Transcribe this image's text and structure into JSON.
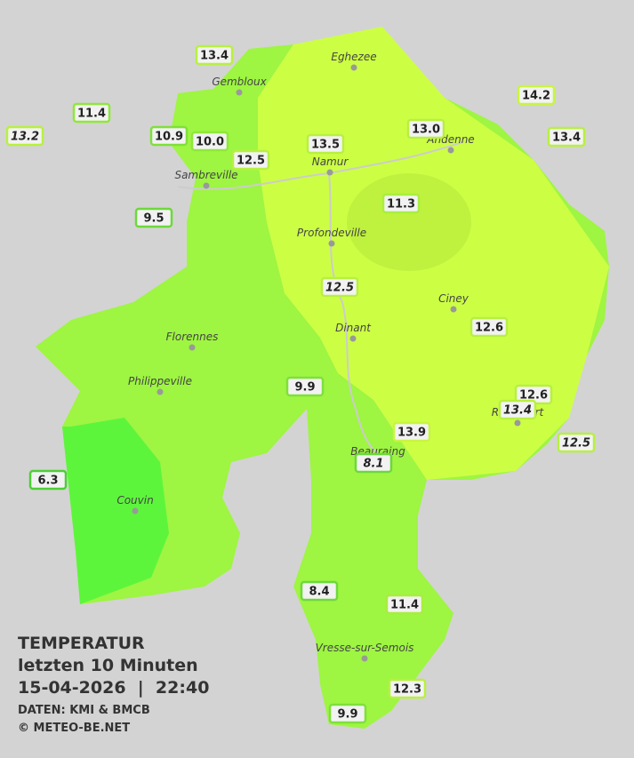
{
  "legend": {
    "title": "TEMPERATUR",
    "subtitle": "letzten 10 Minuten",
    "datetime": "15-04-2026  |  22:40",
    "source": "DATEN: KMI & BMCB",
    "copyright": "© METEO-BE.NET"
  },
  "towns": [
    "Eghezee",
    "Gembloux",
    "Andenne",
    "Namur",
    "Sambreville",
    "Profondeville",
    "Ciney",
    "Dinant",
    "Florennes",
    "Philippeville",
    "Rochefort",
    "Beauraing",
    "Couvin",
    "Vresse-sur-Semois"
  ],
  "stations": [
    {
      "label": "13.4"
    },
    {
      "label": "11.4"
    },
    {
      "label": "13.2",
      "italic": true
    },
    {
      "label": "10.9"
    },
    {
      "label": "10.0"
    },
    {
      "label": "12.5"
    },
    {
      "label": "13.5"
    },
    {
      "label": "13.0"
    },
    {
      "label": "14.2"
    },
    {
      "label": "13.4"
    },
    {
      "label": "9.5"
    },
    {
      "label": "11.3"
    },
    {
      "label": "12.5",
      "italic": true
    },
    {
      "label": "12.6"
    },
    {
      "label": "9.9"
    },
    {
      "label": "12.6"
    },
    {
      "label": "13.4",
      "italic": true
    },
    {
      "label": "12.5",
      "italic": true
    },
    {
      "label": "13.9"
    },
    {
      "label": "8.1",
      "italic": true
    },
    {
      "label": "6.3"
    },
    {
      "label": "8.4"
    },
    {
      "label": "11.4"
    },
    {
      "label": "12.3"
    },
    {
      "label": "9.9"
    }
  ]
}
